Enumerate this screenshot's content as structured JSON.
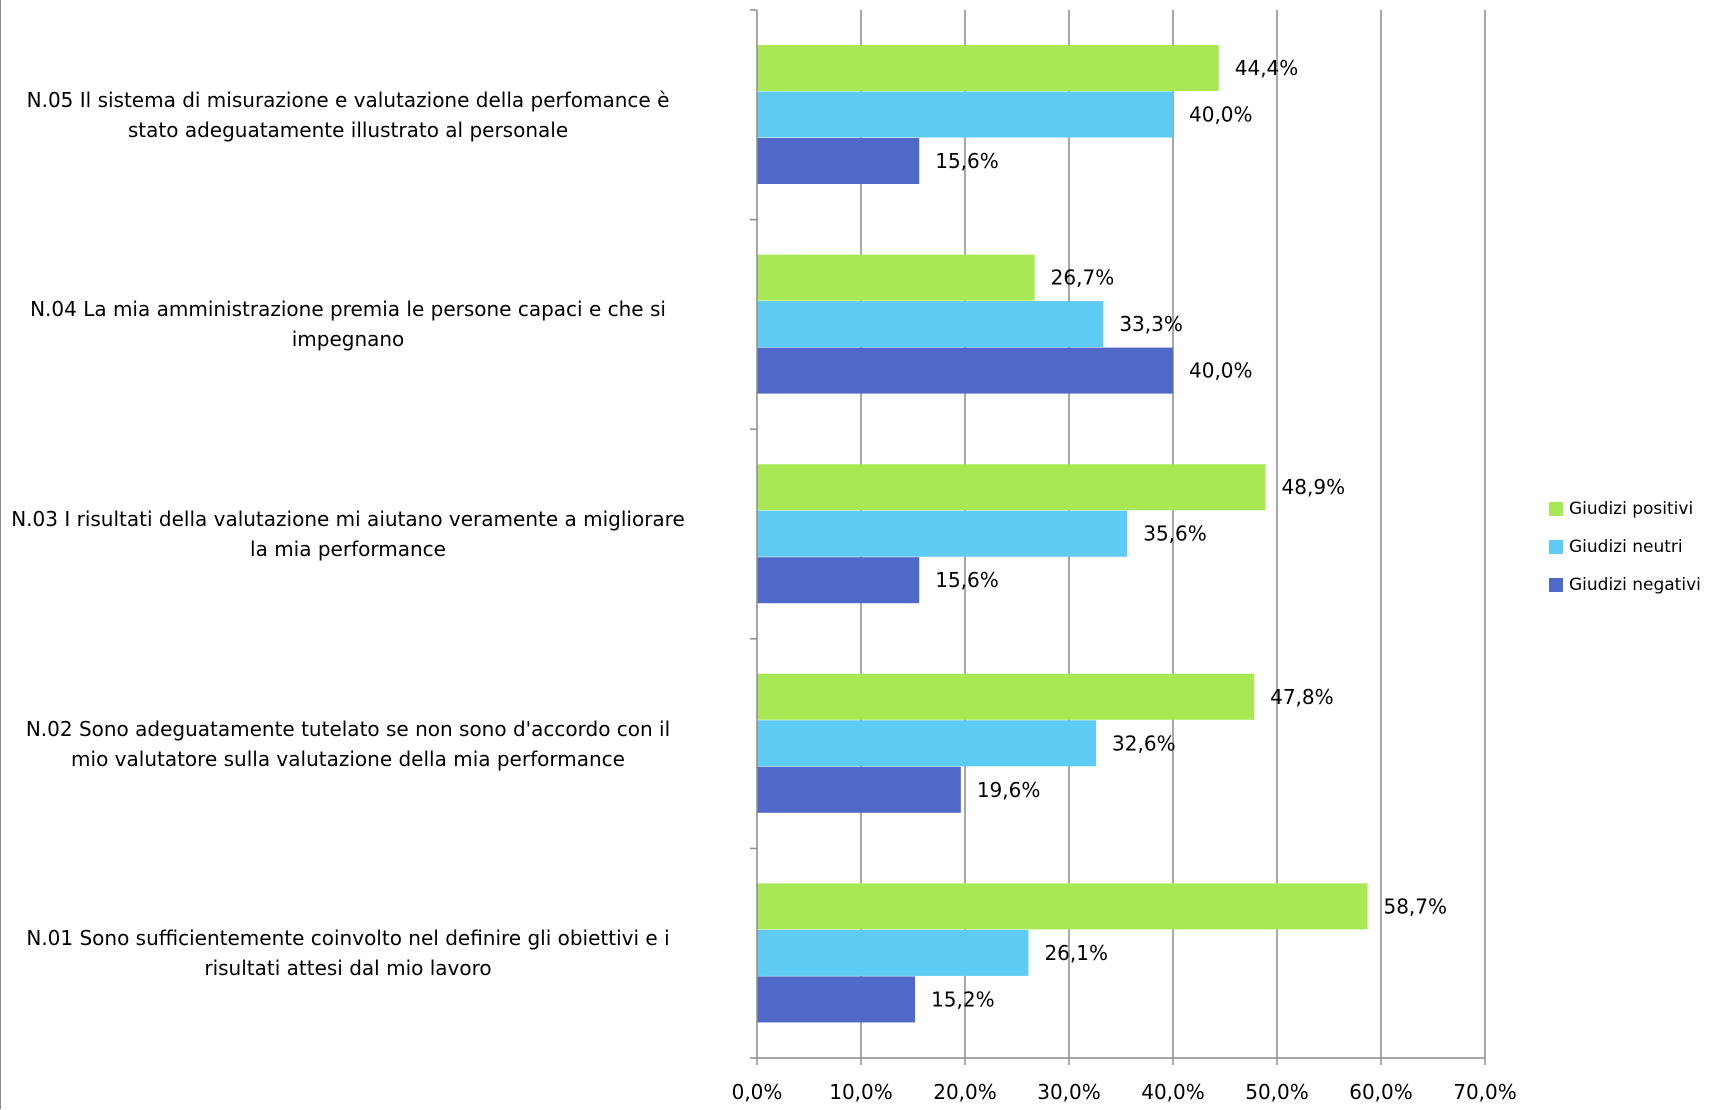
{
  "chart_data": {
    "type": "bar",
    "orientation": "horizontal",
    "title": "",
    "xlabel": "",
    "ylabel": "",
    "xlim": [
      0,
      70
    ],
    "x_ticks": [
      "0,0%",
      "10,0%",
      "20,0%",
      "30,0%",
      "40,0%",
      "50,0%",
      "60,0%",
      "70,0%"
    ],
    "grid": "vertical gridlines at each tick",
    "legend_position": "right",
    "categories": [
      "N.05 Il sistema di misurazione e valutazione della perfomance è stato adeguatamente illustrato al personale",
      "N.04 La mia amministrazione premia le persone capaci e che si impegnano",
      "N.03 I risultati della valutazione mi aiutano veramente a migliorare la mia performance",
      "N.02 Sono adeguatamente tutelato se non sono d'accordo con il mio valutatore sulla valutazione della mia performance",
      "N.01 Sono sufficientemente coinvolto nel definire gli obiettivi e i risultati attesi dal mio lavoro"
    ],
    "series": [
      {
        "name": "Giudizi positivi",
        "color": "#a8e854",
        "values": [
          44.4,
          26.7,
          48.9,
          47.8,
          58.7
        ],
        "labels": [
          "44,4%",
          "26,7%",
          "48,9%",
          "47,8%",
          "58,7%"
        ]
      },
      {
        "name": "Giudizi neutri",
        "color": "#5dcbf3",
        "values": [
          40.0,
          33.3,
          35.6,
          32.6,
          26.1
        ],
        "labels": [
          "40,0%",
          "33,3%",
          "35,6%",
          "32,6%",
          "26,1%"
        ]
      },
      {
        "name": "Giudizi negativi",
        "color": "#5068c8",
        "values": [
          15.6,
          40.0,
          15.6,
          19.6,
          15.2
        ],
        "labels": [
          "15,6%",
          "40,0%",
          "15,6%",
          "19,6%",
          "15,2%"
        ]
      }
    ]
  }
}
